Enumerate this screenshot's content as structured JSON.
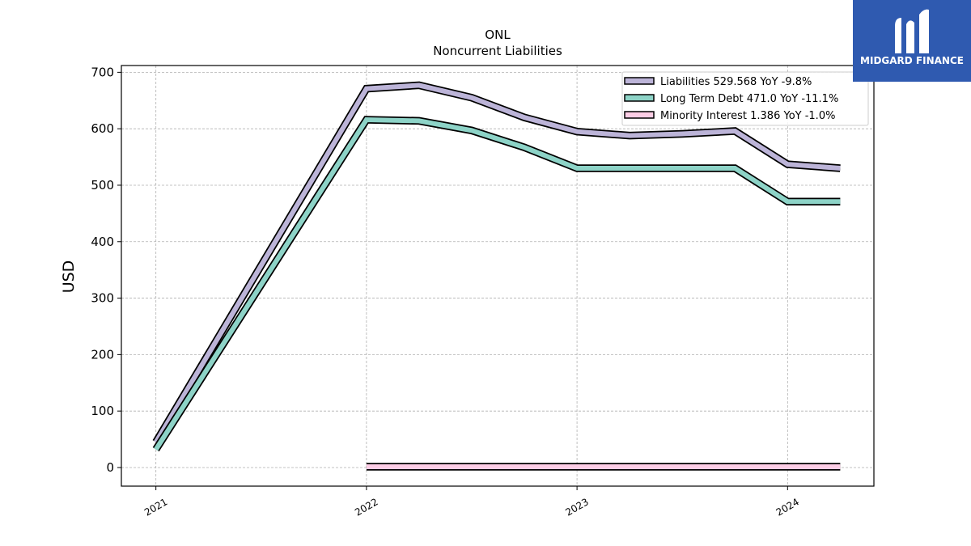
{
  "chart_data": {
    "type": "line",
    "title": "ONL",
    "subtitle": "Noncurrent  Liabilities",
    "ylabel": "USD",
    "xlabel": "",
    "ylim": [
      -33,
      712
    ],
    "xlim": [
      2020.836,
      2024.41
    ],
    "yticks": [
      0,
      100,
      200,
      300,
      400,
      500,
      600,
      700
    ],
    "xticks": [
      {
        "value": 2021,
        "label": "2021"
      },
      {
        "value": 2022,
        "label": "2022"
      },
      {
        "value": 2023,
        "label": "2023"
      },
      {
        "value": 2024,
        "label": "2024"
      }
    ],
    "grid": true,
    "legend_position": "top-right",
    "series": [
      {
        "name": "Liabilities",
        "legend": "Liabilities  529.568 YoY -9.8%",
        "color": "#bcb4d8",
        "points": [
          [
            2021.0,
            45
          ],
          [
            2022.0,
            671
          ],
          [
            2022.25,
            677
          ],
          [
            2022.5,
            655
          ],
          [
            2022.75,
            620
          ],
          [
            2023.0,
            595
          ],
          [
            2023.25,
            588
          ],
          [
            2023.5,
            591
          ],
          [
            2023.75,
            596
          ],
          [
            2024.0,
            537
          ],
          [
            2024.25,
            530
          ]
        ]
      },
      {
        "name": "Long Term Debt",
        "legend": "Long Term Debt  471.0 YoY -11.1%",
        "color": "#8dd3c7",
        "points": [
          [
            2021.0,
            32
          ],
          [
            2022.0,
            616
          ],
          [
            2022.25,
            614
          ],
          [
            2022.5,
            597
          ],
          [
            2022.75,
            567
          ],
          [
            2023.0,
            530
          ],
          [
            2023.25,
            530
          ],
          [
            2023.5,
            530
          ],
          [
            2023.75,
            530
          ],
          [
            2024.0,
            471
          ],
          [
            2024.25,
            471
          ]
        ]
      },
      {
        "name": "Minority Interest",
        "legend": "Minority Interest  1.386 YoY -1.0%",
        "color": "#fccde5",
        "points": [
          [
            2022.0,
            1.4
          ],
          [
            2022.25,
            1.4
          ],
          [
            2022.5,
            1.4
          ],
          [
            2022.75,
            1.4
          ],
          [
            2023.0,
            1.4
          ],
          [
            2023.25,
            1.4
          ],
          [
            2023.5,
            1.4
          ],
          [
            2023.75,
            1.4
          ],
          [
            2024.0,
            1.4
          ],
          [
            2024.25,
            1.386
          ]
        ]
      }
    ]
  },
  "logo": {
    "text": "MIDGARD FINANCE",
    "bg_color": "#2f5ab0"
  }
}
